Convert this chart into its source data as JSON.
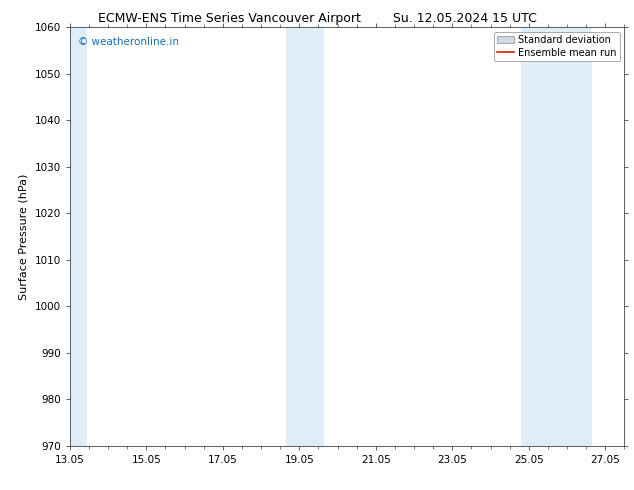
{
  "title_left": "ECMW-ENS Time Series Vancouver Airport",
  "title_right": "Su. 12.05.2024 15 UTC",
  "ylabel": "Surface Pressure (hPa)",
  "ylim": [
    970,
    1060
  ],
  "yticks": [
    970,
    980,
    990,
    1000,
    1010,
    1020,
    1030,
    1040,
    1050,
    1060
  ],
  "xlim": [
    0,
    14.5
  ],
  "xtick_positions": [
    0,
    2,
    4,
    6,
    8,
    10,
    12,
    14
  ],
  "xtick_labels": [
    "13.05",
    "15.05",
    "17.05",
    "19.05",
    "21.05",
    "23.05",
    "25.05",
    "27.05"
  ],
  "watermark": "© weatheronline.in",
  "watermark_color": "#1a6db5",
  "background_color": "#ffffff",
  "plot_bg_color": "#ffffff",
  "shaded_bands": [
    {
      "x_start": -0.1,
      "x_end": 0.45
    },
    {
      "x_start": 5.65,
      "x_end": 6.65
    },
    {
      "x_start": 11.8,
      "x_end": 13.65
    }
  ],
  "band_color": "#ddeef8",
  "legend_std_color": "#d0d8e0",
  "legend_mean_color": "#cc2200",
  "title_fontsize": 9,
  "label_fontsize": 8,
  "tick_fontsize": 7.5,
  "watermark_fontsize": 7.5,
  "legend_fontsize": 7
}
